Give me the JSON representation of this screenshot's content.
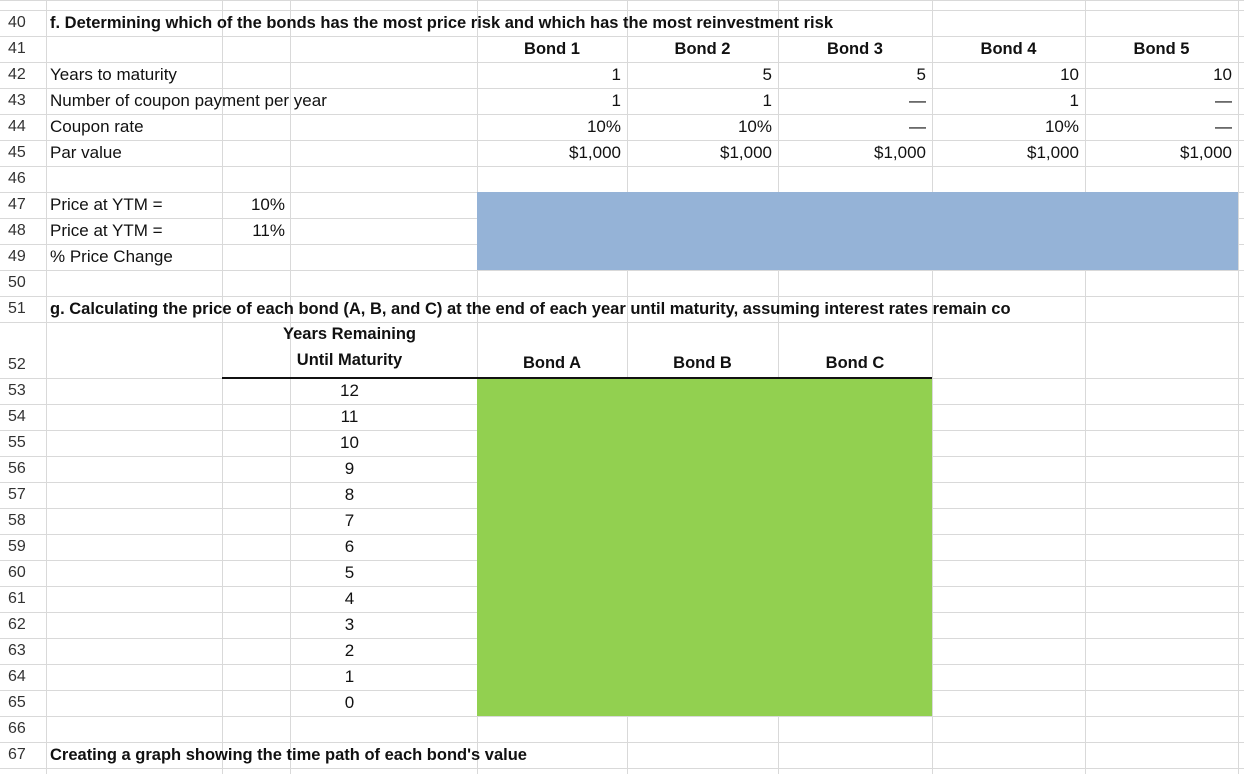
{
  "row_numbers": [
    40,
    41,
    42,
    43,
    44,
    45,
    46,
    47,
    48,
    49,
    50,
    51,
    52,
    53,
    54,
    55,
    56,
    57,
    58,
    59,
    60,
    61,
    62,
    63,
    64,
    65,
    66,
    67
  ],
  "section_f": {
    "title": "f. Determining which of the bonds has the most price risk and which has the most reinvestment risk",
    "headers": [
      "Bond 1",
      "Bond 2",
      "Bond 3",
      "Bond 4",
      "Bond 5"
    ],
    "rows": [
      {
        "label": "Years to maturity",
        "values": [
          "1",
          "5",
          "5",
          "10",
          "10"
        ]
      },
      {
        "label": "Number of coupon payment per year",
        "values": [
          "1",
          "1",
          "—",
          "1",
          "—"
        ]
      },
      {
        "label": "Coupon rate",
        "values": [
          "10%",
          "10%",
          "—",
          "10%",
          "—"
        ]
      },
      {
        "label": "Par value",
        "values": [
          "$1,000",
          "$1,000",
          "$1,000",
          "$1,000",
          "$1,000"
        ]
      }
    ],
    "ytm_rows": [
      {
        "label": "Price at YTM =",
        "rate": "10%"
      },
      {
        "label": "Price at YTM =",
        "rate": "11%"
      },
      {
        "label": "% Price Change"
      }
    ]
  },
  "section_g": {
    "title": "g. Calculating the price of each bond (A, B, and C) at the end of each year until maturity, assuming interest rates remain co",
    "years_header": [
      "Years Remaining",
      "Until Maturity"
    ],
    "bond_headers": [
      "Bond A",
      "Bond B",
      "Bond C"
    ],
    "years": [
      12,
      11,
      10,
      9,
      8,
      7,
      6,
      5,
      4,
      3,
      2,
      1,
      0
    ]
  },
  "section_graph": {
    "title": "Creating a graph showing the time path of each bond's value"
  }
}
